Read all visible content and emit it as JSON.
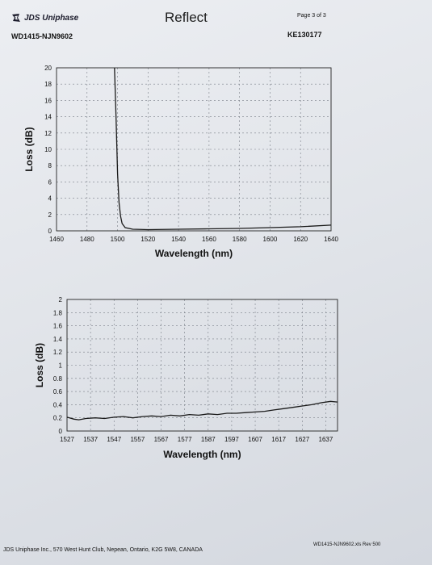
{
  "header": {
    "logo_text": "JDS Uniphase",
    "document_id": "WD1415-NJN9602",
    "title": "Reflect",
    "page": "Page 3 of 3",
    "report_code": "KE130177"
  },
  "footer": {
    "address": "JDS Uniphase Inc., 570 West Hunt Club, Nepean, Ontario, K2G 5W8, CANADA",
    "file": "WD1415-NJN9602.xls  Rev 500"
  },
  "chart_data": [
    {
      "type": "line",
      "xlabel": "Wavelength (nm)",
      "ylabel": "Loss (dB)",
      "xlim": [
        1460,
        1640
      ],
      "ylim": [
        0,
        20
      ],
      "xticks": [
        1460,
        1480,
        1500,
        1520,
        1540,
        1560,
        1580,
        1600,
        1620,
        1640
      ],
      "yticks": [
        0,
        2,
        4,
        6,
        8,
        10,
        12,
        14,
        16,
        18,
        20
      ],
      "grid": true,
      "series": [
        {
          "x": [
            1498,
            1499,
            1500,
            1501,
            1502,
            1503,
            1505,
            1510,
            1520,
            1540,
            1560,
            1580,
            1600,
            1620,
            1640
          ],
          "y": [
            20,
            14,
            7,
            3.5,
            1.8,
            0.9,
            0.4,
            0.2,
            0.15,
            0.2,
            0.25,
            0.3,
            0.4,
            0.5,
            0.7
          ]
        }
      ]
    },
    {
      "type": "line",
      "xlabel": "Wavelength (nm)",
      "ylabel": "Loss (dB)",
      "xlim": [
        1527,
        1642
      ],
      "ylim": [
        0,
        2
      ],
      "xticks": [
        1527,
        1537,
        1547,
        1557,
        1567,
        1577,
        1587,
        1597,
        1607,
        1617,
        1627,
        1637
      ],
      "ytick_labels": [
        "0",
        "0.2",
        "0.4",
        "0.6",
        "0.8",
        "1",
        "1.2",
        "1.4",
        "1.6",
        "1.8",
        "2"
      ],
      "grid": true,
      "series": [
        {
          "x": [
            1527,
            1530,
            1532,
            1535,
            1539,
            1543,
            1547,
            1551,
            1555,
            1559,
            1563,
            1567,
            1571,
            1575,
            1579,
            1583,
            1587,
            1591,
            1595,
            1599,
            1603,
            1607,
            1611,
            1615,
            1619,
            1623,
            1627,
            1631,
            1635,
            1639,
            1642
          ],
          "y": [
            0.21,
            0.18,
            0.17,
            0.19,
            0.2,
            0.19,
            0.21,
            0.22,
            0.2,
            0.22,
            0.23,
            0.22,
            0.24,
            0.23,
            0.25,
            0.24,
            0.26,
            0.25,
            0.27,
            0.27,
            0.28,
            0.29,
            0.3,
            0.32,
            0.34,
            0.36,
            0.38,
            0.4,
            0.43,
            0.45,
            0.44
          ]
        }
      ]
    }
  ]
}
